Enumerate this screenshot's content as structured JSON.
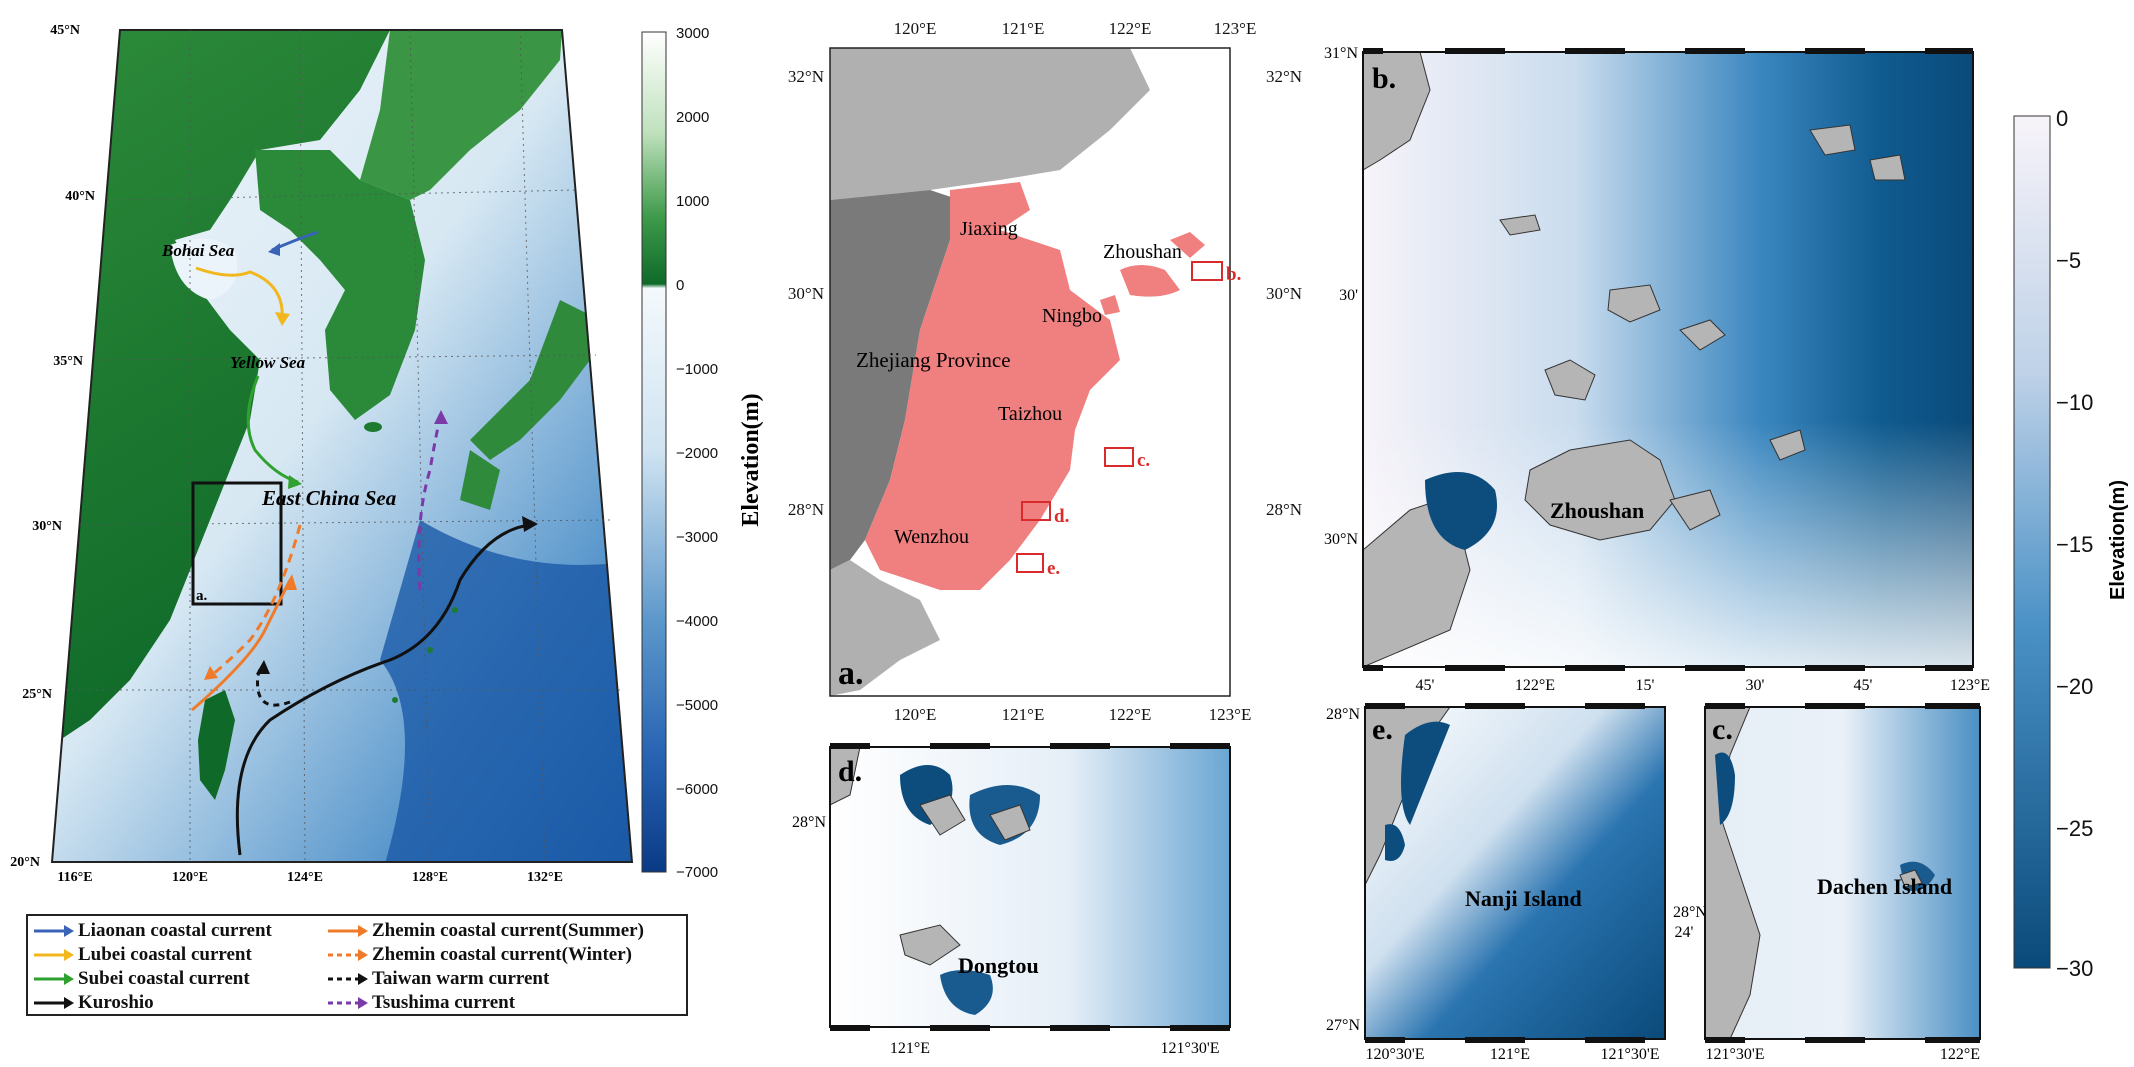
{
  "overview_map": {
    "lat_labels": [
      "45°N",
      "40°N",
      "35°N",
      "30°N",
      "25°N",
      "20°N"
    ],
    "lon_labels": [
      "116°E",
      "120°E",
      "124°E",
      "128°E",
      "132°E"
    ],
    "sea_labels": [
      "Bohai Sea",
      "Yellow Sea",
      "East China Sea"
    ],
    "box_label": "a.",
    "colorbar": {
      "title": "Elevation(m)",
      "ticks": [
        "3000",
        "2000",
        "1000",
        "0",
        "−1000",
        "−2000",
        "−3000",
        "−4000",
        "−5000",
        "−6000",
        "−7000"
      ],
      "colors": {
        "land_high": "#ffffff",
        "land_mid": "#3f9a4a",
        "land_low": "#0f6a2a",
        "sea_shallow": "#f4f9fc",
        "sea_deep": "#0a3a86"
      }
    }
  },
  "legend": {
    "items": [
      {
        "label": "Liaonan coastal current",
        "color": "#3a63b8",
        "style": "solid"
      },
      {
        "label": "Lubei coastal current",
        "color": "#f2b71d",
        "style": "solid"
      },
      {
        "label": "Subei coastal current",
        "color": "#2ea12e",
        "style": "solid"
      },
      {
        "label": "Kuroshio",
        "color": "#111111",
        "style": "solid"
      },
      {
        "label": "Zhemin  coastal current(Summer)",
        "color": "#ef7b2a",
        "style": "solid"
      },
      {
        "label": "Zhemin  coastal current(Winter)",
        "color": "#ef7b2a",
        "style": "dashed"
      },
      {
        "label": "Taiwan warm current",
        "color": "#111111",
        "style": "dashed"
      },
      {
        "label": "Tsushima current",
        "color": "#7a3aa8",
        "style": "dashed"
      }
    ]
  },
  "panel_a": {
    "label": "a.",
    "top_ticks": [
      "120°E",
      "121°E",
      "122°E",
      "123°E"
    ],
    "bottom_ticks": [
      "120°E",
      "121°E",
      "122°E",
      "123°E"
    ],
    "left_ticks": [
      "32°N",
      "30°N",
      "28°N"
    ],
    "right_ticks": [
      "32°N",
      "30°N",
      "28°N"
    ],
    "places": [
      "Jiaxing",
      "Zhoushan",
      "Ningbo",
      "Zhejiang Province",
      "Taizhou",
      "Wenzhou"
    ],
    "box_labels": [
      "b.",
      "c.",
      "d.",
      "e."
    ],
    "colors": {
      "province": "#7a7a7a",
      "cities": "#f08080",
      "other_land": "#b0b0b0",
      "box": "#d92b2b"
    }
  },
  "panel_b": {
    "label": "b.",
    "place": "Zhoushan",
    "left_ticks": [
      "31°N",
      "30'",
      "30°N"
    ],
    "bottom_ticks": [
      "45'",
      "122°E",
      "15'",
      "30'",
      "45'",
      "123°E"
    ]
  },
  "panel_d": {
    "label": "d.",
    "place": "Dongtou",
    "left_ticks": [
      "28°N"
    ],
    "bottom_ticks": [
      "121°E",
      "121°30'E"
    ]
  },
  "panel_e": {
    "label": "e.",
    "place": "Nanji Island",
    "left_ticks": [
      "28°N",
      "27°N"
    ],
    "bottom_ticks": [
      "120°30'E",
      "121°E",
      "121°30'E"
    ],
    "mid_label_1": "28°N",
    "mid_label_2": "24'"
  },
  "panel_c": {
    "label": "c.",
    "place": "Dachen Island",
    "bottom_ticks": [
      "121°30'E",
      "122°E"
    ]
  },
  "right_colorbar": {
    "title": "Elevation(m)",
    "ticks": [
      "0",
      "−5",
      "−10",
      "−15",
      "−20",
      "−25",
      "−30"
    ],
    "colors": {
      "top": "#f7f3f9",
      "bottom": "#0a4a7a"
    }
  }
}
